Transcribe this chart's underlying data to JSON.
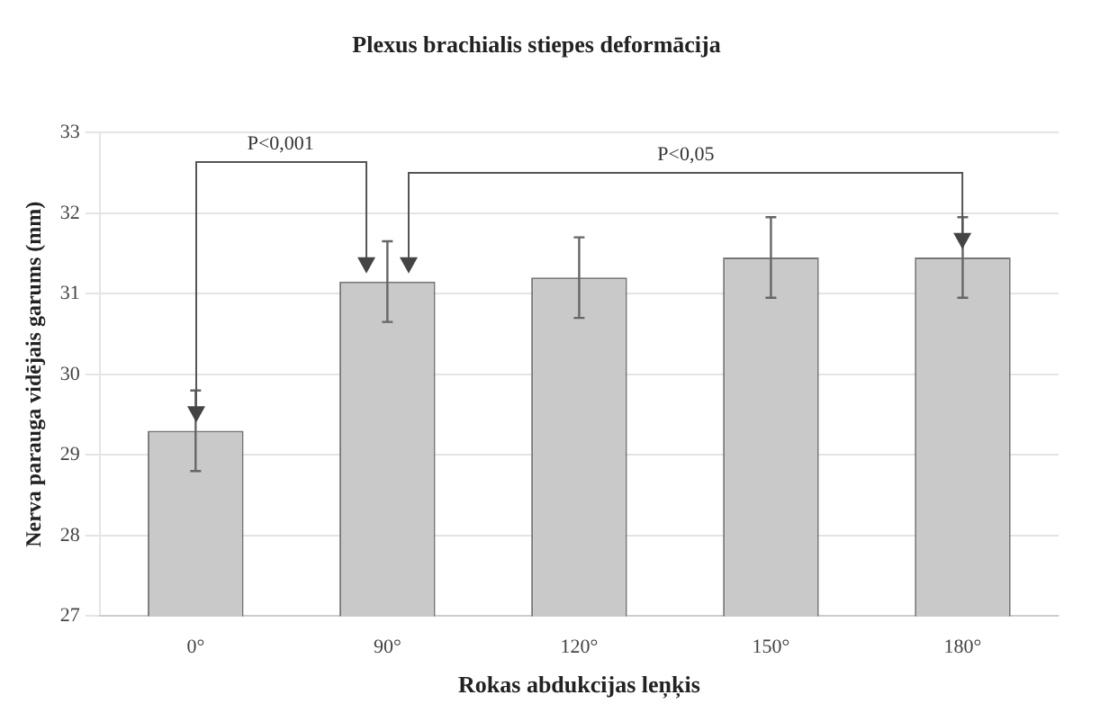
{
  "chart_data": {
    "type": "bar",
    "title": "Plexus brachialis stiepes deformācija",
    "xlabel": "Rokas abdukcijas leņķis",
    "ylabel": "Nerva parauga vidējais garums (mm)",
    "categories": [
      "0°",
      "90°",
      "120°",
      "150°",
      "180°"
    ],
    "values": [
      29.3,
      31.15,
      31.2,
      31.45,
      31.45
    ],
    "errors": [
      0.5,
      0.5,
      0.5,
      0.5,
      0.5
    ],
    "color": "#c9c9c9",
    "ylim": [
      27,
      33
    ],
    "yticks": [
      27,
      28,
      29,
      30,
      31,
      32,
      33
    ],
    "grid": "y",
    "annotations": [
      "P<0,001",
      "P<0,05"
    ]
  }
}
